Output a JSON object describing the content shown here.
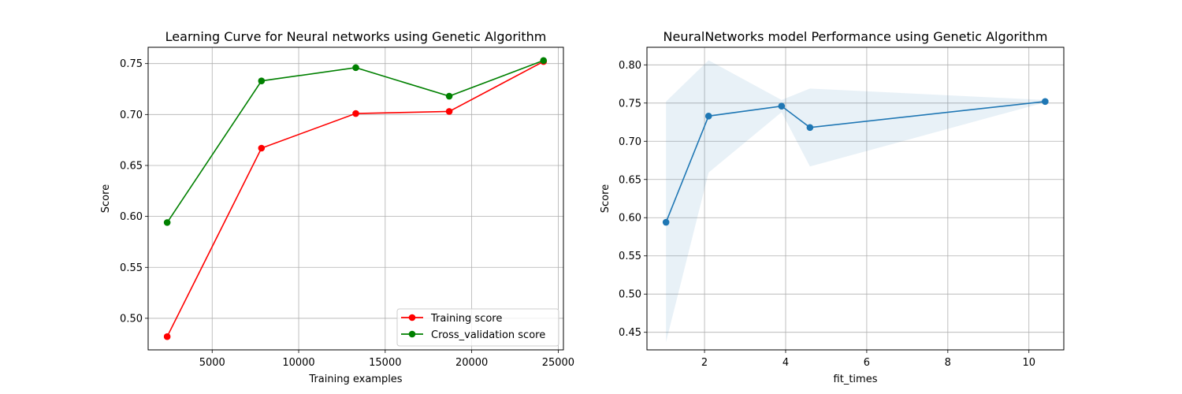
{
  "chart_data": [
    {
      "type": "line",
      "title": "Learning Curve for Neural networks using Genetic Algorithm",
      "xlabel": "Training examples",
      "ylabel": "Score",
      "xlim": [
        1300,
        25300
      ],
      "ylim": [
        0.469,
        0.766
      ],
      "xticks": [
        5000,
        10000,
        15000,
        20000,
        25000
      ],
      "yticks": [
        0.5,
        0.55,
        0.6,
        0.65,
        0.7,
        0.75
      ],
      "ytick_decimals": 2,
      "grid": true,
      "legend_position": "lower-right",
      "x": [
        2400,
        7850,
        13300,
        18700,
        24150
      ],
      "series": [
        {
          "name": "Training score",
          "color": "#ff0000",
          "values": [
            0.482,
            0.667,
            0.701,
            0.703,
            0.752
          ]
        },
        {
          "name": "Cross_validation score",
          "color": "#008000",
          "values": [
            0.594,
            0.733,
            0.746,
            0.718,
            0.753
          ]
        }
      ]
    },
    {
      "type": "line",
      "title": "NeuralNetworks model Performance using Genetic Algorithm",
      "xlabel": "fit_times",
      "ylabel": "Score",
      "xlim": [
        0.58,
        10.86
      ],
      "ylim": [
        0.427,
        0.823
      ],
      "xticks": [
        2,
        4,
        6,
        8,
        10
      ],
      "yticks": [
        0.45,
        0.5,
        0.55,
        0.6,
        0.65,
        0.7,
        0.75,
        0.8
      ],
      "ytick_decimals": 2,
      "grid": true,
      "series": [
        {
          "color": "#1f77b4",
          "band_color": "#1f77b4",
          "x": [
            1.05,
            2.1,
            3.9,
            4.6,
            10.4
          ],
          "values": [
            0.594,
            0.733,
            0.746,
            0.718,
            0.752
          ],
          "lower": [
            0.437,
            0.659,
            0.738,
            0.667,
            0.751
          ],
          "upper": [
            0.752,
            0.806,
            0.754,
            0.769,
            0.754
          ]
        }
      ]
    }
  ]
}
